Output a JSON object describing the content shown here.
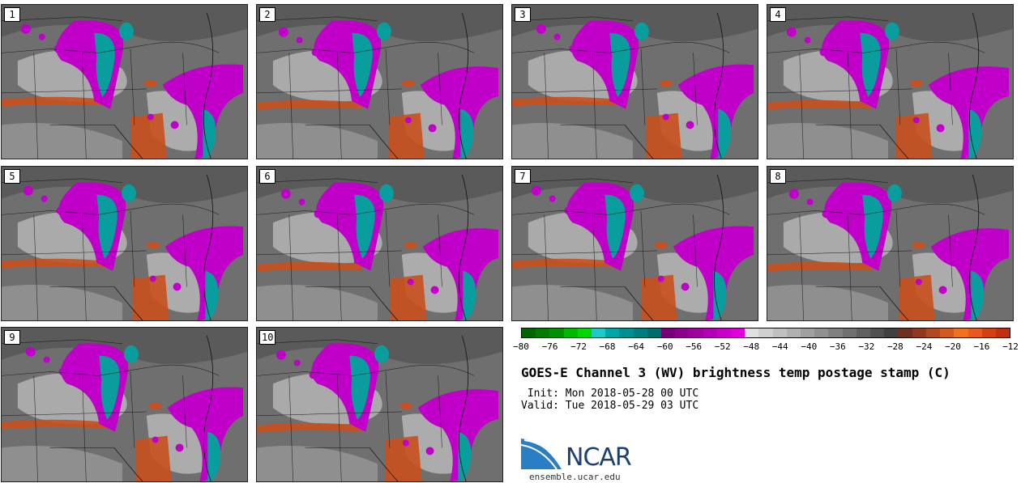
{
  "panels": [
    {
      "label": "1"
    },
    {
      "label": "2"
    },
    {
      "label": "3"
    },
    {
      "label": "4"
    },
    {
      "label": "5"
    },
    {
      "label": "6"
    },
    {
      "label": "7"
    },
    {
      "label": "8"
    },
    {
      "label": "9"
    },
    {
      "label": "10"
    }
  ],
  "colorbar": {
    "colors": [
      "#006400",
      "#007a00",
      "#009000",
      "#00b800",
      "#00d800",
      "#20c8c8",
      "#00a6a6",
      "#009090",
      "#007e7e",
      "#006c6c",
      "#760076",
      "#8c008c",
      "#a000a0",
      "#b400b4",
      "#c800c8",
      "#dc00dc",
      "#e0e0e0",
      "#d0d0d0",
      "#c0c0c0",
      "#b0b0b0",
      "#a0a0a0",
      "#909090",
      "#808080",
      "#707070",
      "#606060",
      "#505050",
      "#404040",
      "#703020",
      "#903820",
      "#b04820",
      "#d05a20",
      "#f07020",
      "#e85820",
      "#d44010",
      "#c03010"
    ],
    "ticks": [
      "−80",
      "−76",
      "−72",
      "−68",
      "−64",
      "−60",
      "−56",
      "−52",
      "−48",
      "−44",
      "−40",
      "−36",
      "−32",
      "−28",
      "−24",
      "−20",
      "−16",
      "−12"
    ]
  },
  "title": "GOES-E Channel 3 (WV) brightness temp postage stamp (C)",
  "init": " Init: Mon 2018-05-28 00 UTC",
  "valid": "Valid: Tue 2018-05-29 03 UTC",
  "logo_text": "NCAR",
  "url": "ensemble.ucar.edu"
}
